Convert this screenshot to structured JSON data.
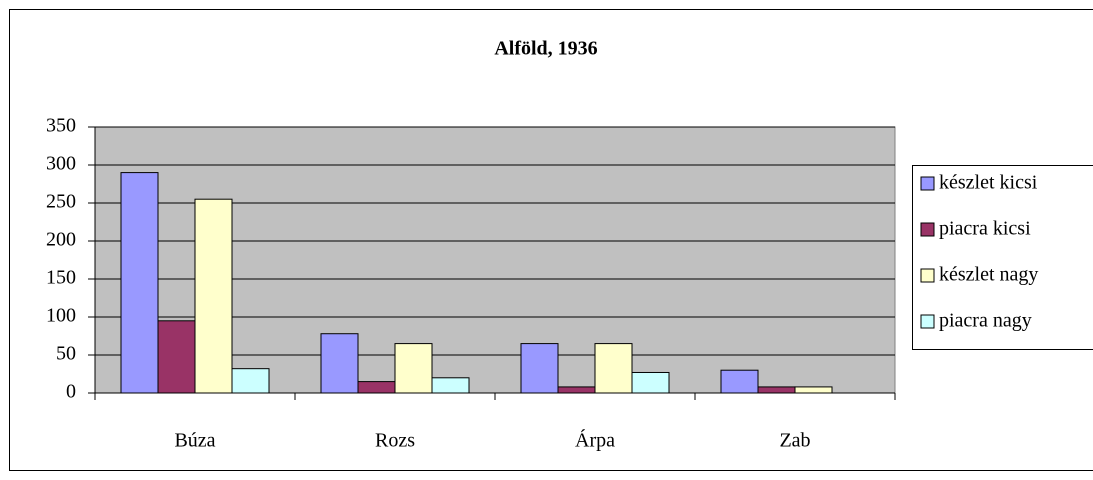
{
  "chart_data": {
    "type": "bar",
    "title": "Alföld, 1936",
    "categories": [
      "Búza",
      "Rozs",
      "Árpa",
      "Zab"
    ],
    "series": [
      {
        "name": "készlet kicsi",
        "color": "#9999ff",
        "values": [
          290,
          78,
          65,
          30
        ]
      },
      {
        "name": "piacra kicsi",
        "color": "#993366",
        "values": [
          95,
          15,
          8,
          8
        ]
      },
      {
        "name": "készlet nagy",
        "color": "#ffffcc",
        "values": [
          255,
          65,
          65,
          8
        ]
      },
      {
        "name": "piacra nagy",
        "color": "#ccffff",
        "values": [
          32,
          20,
          27,
          null
        ]
      }
    ],
    "ylim": [
      0,
      350
    ],
    "yticks": [
      0,
      50,
      100,
      150,
      200,
      250,
      300,
      350
    ],
    "grid": true,
    "legend": "right"
  }
}
